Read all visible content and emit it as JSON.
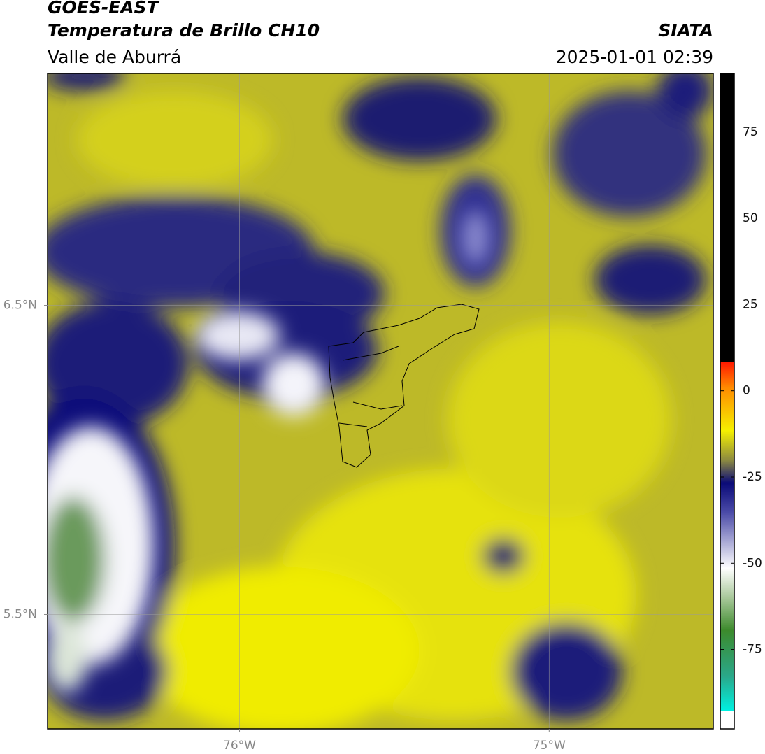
{
  "chart_data": {
    "type": "map",
    "title": "GOES-EAST",
    "subtitle": "Temperatura de Brillo CH10",
    "region": "Valle de Aburrá",
    "source": "SIATA",
    "timestamp": "2025-01-01 02:39",
    "xlim": [
      -76.62,
      -74.47
    ],
    "ylim": [
      5.13,
      7.25
    ],
    "xticks": [
      {
        "value": -76,
        "label": "76°W"
      },
      {
        "value": -75,
        "label": "75°W"
      }
    ],
    "yticks": [
      {
        "value": 6.5,
        "label": "6.5°N"
      },
      {
        "value": 5.5,
        "label": "5.5°N"
      }
    ],
    "grid": true,
    "colorbar": {
      "lim": [
        -98,
        92
      ],
      "ticks": [
        -75,
        -50,
        -25,
        0,
        25,
        50,
        75
      ]
    }
  }
}
